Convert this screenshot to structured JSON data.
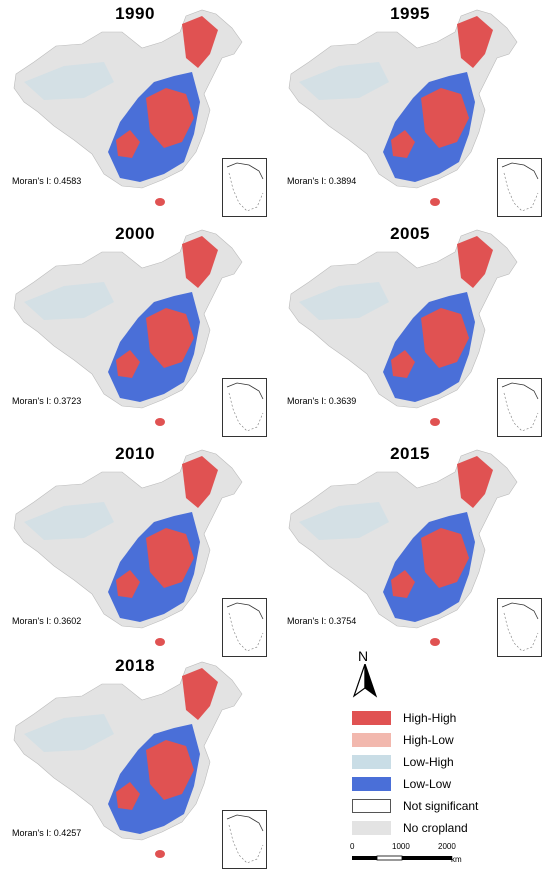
{
  "panels": [
    {
      "year": "1990",
      "moran": "Moran's I: 0.4583"
    },
    {
      "year": "1995",
      "moran": "Moran's I: 0.3894"
    },
    {
      "year": "2000",
      "moran": "Moran's I: 0.3723"
    },
    {
      "year": "2005",
      "moran": "Moran's I: 0.3639"
    },
    {
      "year": "2010",
      "moran": "Moran's I: 0.3602"
    },
    {
      "year": "2015",
      "moran": "Moran's I: 0.3754"
    },
    {
      "year": "2018",
      "moran": "Moran's I: 0.4257"
    }
  ],
  "north_label": "N",
  "legend": [
    {
      "label": "High-High",
      "color": "#e05252"
    },
    {
      "label": "High-Low",
      "color": "#f2b8ae"
    },
    {
      "label": "Low-High",
      "color": "#c9dde6"
    },
    {
      "label": "Low-Low",
      "color": "#4a6fd8"
    },
    {
      "label": "Not significant",
      "color": "#ffffff"
    },
    {
      "label": "No cropland",
      "color": "#e3e3e3"
    }
  ],
  "scale": {
    "ticks": [
      "0",
      "1000",
      "2000"
    ],
    "unit": "km"
  },
  "colors": {
    "high_high": "#e05252",
    "low_low": "#4a6fd8",
    "no_cropland": "#e3e3e3",
    "low_high": "#c9dde6"
  }
}
